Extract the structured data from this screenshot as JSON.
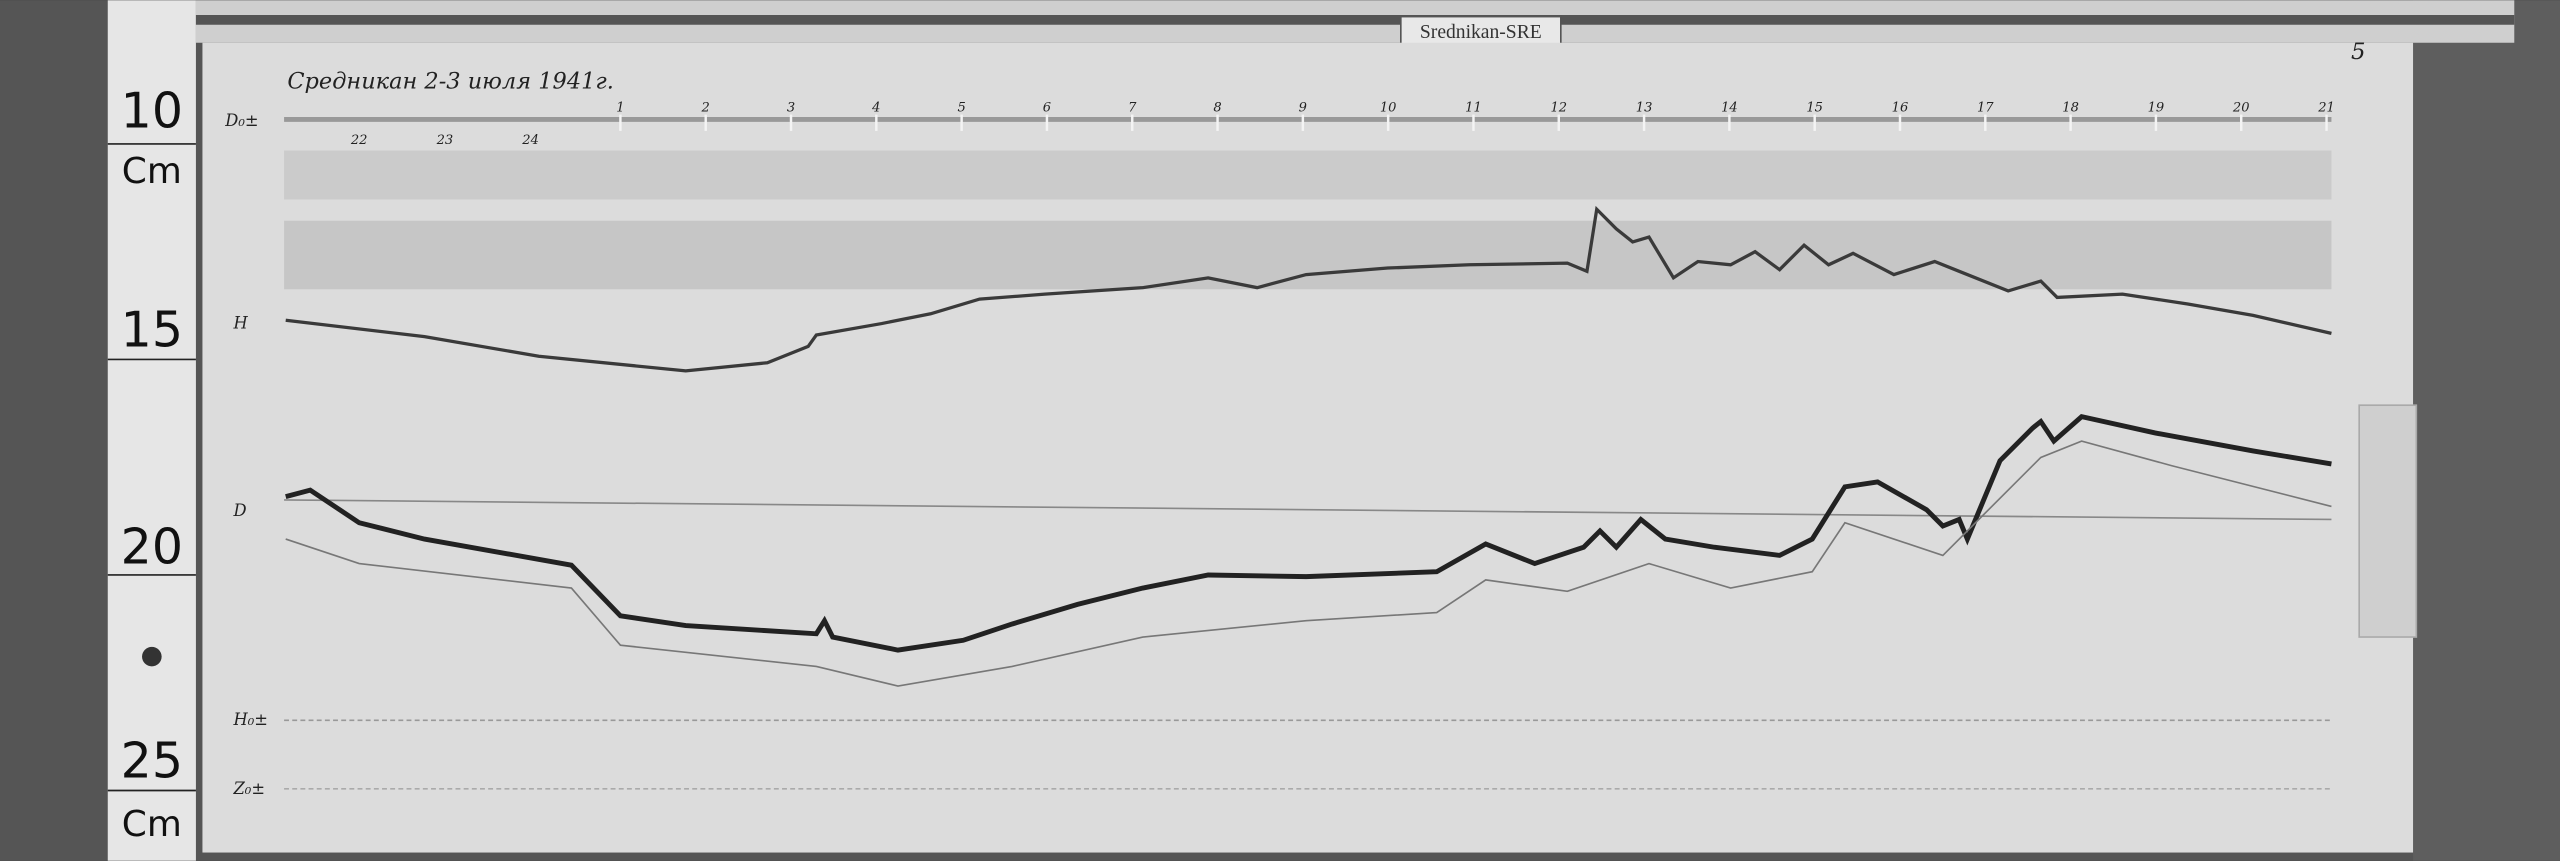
{
  "label_tag": "Srednikan-SRE",
  "title": "Средникан 2-3 июля 1941г.",
  "page_number": "5",
  "ruler": {
    "marks": [
      "10",
      "Cm",
      "15",
      "20",
      "25",
      "Cm"
    ]
  },
  "channels": {
    "d0": "D₀±",
    "h": "H",
    "d": "D",
    "h0": "H₀±",
    "z0": "Z₀±"
  },
  "hours_top": [
    "1",
    "2",
    "3",
    "4",
    "5",
    "6",
    "7",
    "8",
    "9",
    "10",
    "11",
    "12",
    "13",
    "14",
    "15",
    "16",
    "17",
    "18",
    "19",
    "20",
    "21"
  ],
  "hours_prev": [
    "22",
    "23",
    "24"
  ],
  "colors": {
    "paper": "#dcdcdc",
    "trace": "#3a3a3a",
    "background": "#4a4a4a"
  }
}
